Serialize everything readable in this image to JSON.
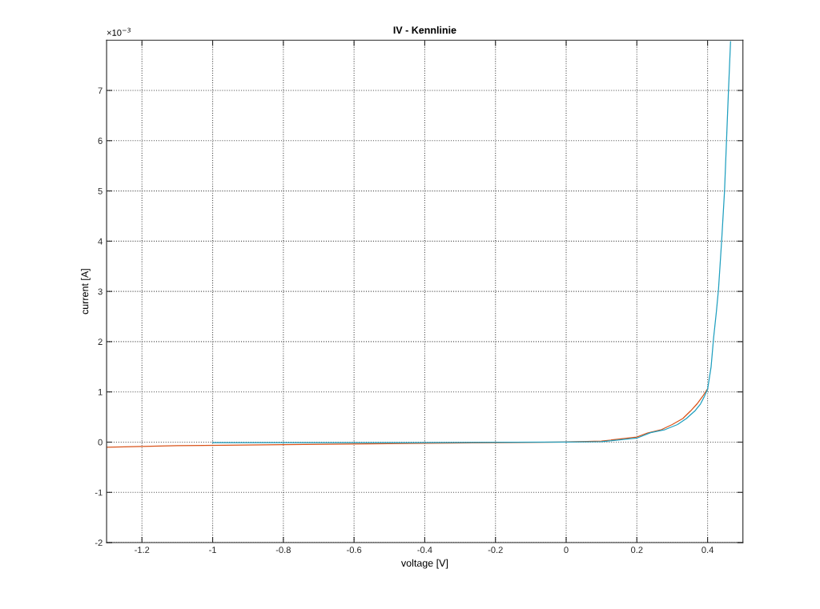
{
  "chart_data": {
    "type": "line",
    "title": "IV - Kennlinie",
    "xlabel": "voltage [V]",
    "ylabel": "current [A]",
    "annotations": [
      "×10$^{−3}$"
    ],
    "xlim": [
      -1.3,
      0.5
    ],
    "xticks": [
      -1.2,
      -1,
      -0.8,
      -0.6,
      -0.4,
      -0.2,
      0,
      0.2,
      0.4
    ],
    "ylim": [
      -2,
      8
    ],
    "yticks": [
      -2,
      -1,
      0,
      1,
      2,
      3,
      4,
      5,
      6,
      7
    ],
    "grid": true,
    "line_style": "solid",
    "series": [
      {
        "color": "#d95319",
        "x": [
          -1.3,
          -1.1,
          -0.8,
          -0.5,
          -0.2,
          0,
          0.1,
          0.2,
          0.23,
          0.27,
          0.3,
          0.33,
          0.352,
          0.37,
          0.385,
          0.4
        ],
        "values": [
          -0.1,
          -0.07,
          -0.05,
          -0.03,
          -0.01,
          0,
          0.02,
          0.1,
          0.18,
          0.25,
          0.35,
          0.47,
          0.62,
          0.76,
          0.9,
          1.06
        ]
      },
      {
        "color": "#1f9fbf",
        "x": [
          -1.0,
          -0.5,
          0,
          0.1,
          0.2,
          0.239,
          0.28,
          0.315,
          0.34,
          0.364,
          0.38,
          0.391,
          0.4,
          0.41,
          0.417,
          0.425,
          0.431,
          0.44,
          0.448,
          0.459,
          0.465
        ],
        "values": [
          -0.01,
          -0.01,
          0,
          0.01,
          0.08,
          0.19,
          0.25,
          0.35,
          0.47,
          0.62,
          0.76,
          0.91,
          1.05,
          1.5,
          2.07,
          2.6,
          3.05,
          4.03,
          5.0,
          6.97,
          7.97
        ]
      }
    ]
  }
}
